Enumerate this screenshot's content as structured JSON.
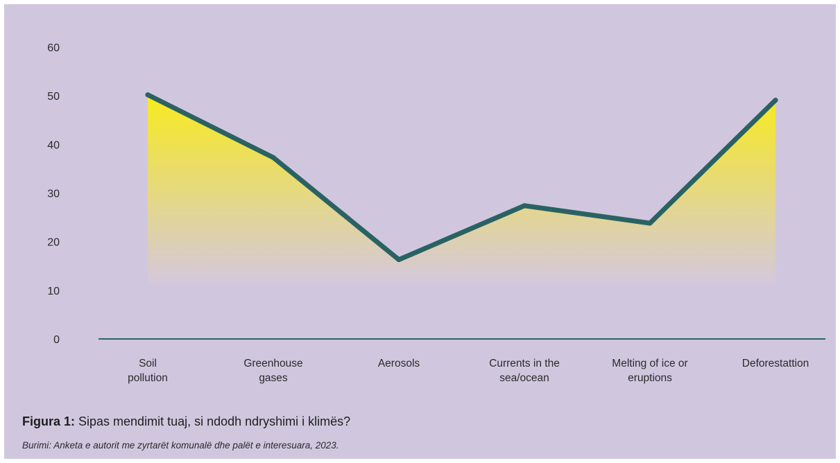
{
  "chart_data": {
    "type": "area",
    "categories": [
      [
        "Soil",
        "pollution"
      ],
      [
        "Greenhouse",
        "gases"
      ],
      [
        "Aerosols"
      ],
      [
        "Currents in the",
        "sea/ocean"
      ],
      [
        "Melting of ice or",
        "eruptions"
      ],
      [
        "Deforestattion"
      ]
    ],
    "values": [
      50.2,
      37.3,
      16.3,
      27.4,
      23.8,
      49.1
    ],
    "ylim": [
      0,
      60
    ],
    "yticks": [
      0,
      10,
      20,
      30,
      40,
      50,
      60
    ],
    "grid": false,
    "colors": {
      "line": "#2a6263",
      "fill_top": "#f7ea1e",
      "fill_bottom": "#d5c8dd",
      "axis": "#2a6263",
      "background": "#d0c7df"
    }
  },
  "caption": {
    "label": "Figura 1:",
    "text": " Sipas mendimit tuaj, si ndodh ndryshimi i klimës?"
  },
  "source": "Burimi: Anketa e autorit me zyrtarët komunalë dhe palët e interesuara, 2023."
}
